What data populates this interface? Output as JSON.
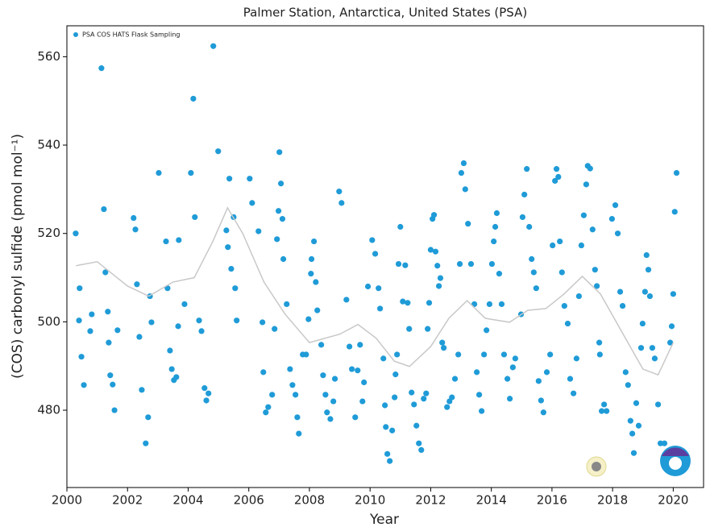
{
  "chart_data": {
    "type": "scatter",
    "title": "Palmer Station, Antarctica, United States (PSA)",
    "x_label": "Year",
    "y_label": "(COS) carbonyl sulfide (pmol mol⁻¹)",
    "xlim": [
      2000,
      2021
    ],
    "ylim": [
      462.5,
      567
    ],
    "xticks": [
      2000,
      2002,
      2004,
      2006,
      2008,
      2010,
      2012,
      2014,
      2016,
      2018,
      2020
    ],
    "yticks": [
      480,
      500,
      520,
      540,
      560
    ],
    "legend": "upper left",
    "series": [
      {
        "name": "PSA COS HATS Flask Sampling",
        "color": "#1f9bd7",
        "type": "scatter",
        "x": [
          2000.29,
          2000.42,
          2000.4,
          2000.48,
          2000.56,
          2000.77,
          2000.82,
          2001.14,
          2001.22,
          2001.27,
          2001.35,
          2001.38,
          2001.43,
          2001.51,
          2001.57,
          2001.67,
          2002.2,
          2002.26,
          2002.31,
          2002.39,
          2002.47,
          2002.6,
          2002.68,
          2002.79,
          2002.74,
          2003.03,
          2003.27,
          2003.32,
          2003.4,
          2003.46,
          2003.53,
          2003.61,
          2003.67,
          2003.69,
          2003.88,
          2004.09,
          2004.17,
          2004.22,
          2004.36,
          2004.44,
          2004.54,
          2004.6,
          2004.67,
          2004.83,
          2004.99,
          2005.26,
          2005.31,
          2005.36,
          2005.42,
          2005.5,
          2005.55,
          2005.6,
          2006.03,
          2006.11,
          2006.32,
          2006.45,
          2006.48,
          2006.56,
          2006.64,
          2006.77,
          2006.85,
          2006.93,
          2006.98,
          2007.01,
          2007.06,
          2007.11,
          2007.14,
          2007.25,
          2007.36,
          2007.44,
          2007.54,
          2007.6,
          2007.65,
          2007.78,
          2007.89,
          2007.97,
          2008.05,
          2008.07,
          2008.15,
          2008.21,
          2008.26,
          2008.39,
          2008.45,
          2008.53,
          2008.58,
          2008.69,
          2008.79,
          2008.84,
          2008.98,
          2009.06,
          2009.22,
          2009.32,
          2009.4,
          2009.51,
          2009.59,
          2009.67,
          2009.75,
          2009.8,
          2009.93,
          2010.07,
          2010.17,
          2010.28,
          2010.33,
          2010.44,
          2010.49,
          2010.52,
          2010.57,
          2010.65,
          2010.73,
          2010.81,
          2010.84,
          2010.89,
          2010.94,
          2011.0,
          2011.08,
          2011.16,
          2011.24,
          2011.29,
          2011.37,
          2011.45,
          2011.53,
          2011.61,
          2011.69,
          2011.77,
          2011.85,
          2011.9,
          2011.95,
          2012.0,
          2012.06,
          2012.11,
          2012.16,
          2012.22,
          2012.27,
          2012.32,
          2012.38,
          2012.43,
          2012.54,
          2012.62,
          2012.7,
          2012.8,
          2012.91,
          2012.96,
          2013.01,
          2013.09,
          2013.14,
          2013.23,
          2013.33,
          2013.44,
          2013.52,
          2013.6,
          2013.68,
          2013.76,
          2013.84,
          2013.94,
          2014.02,
          2014.08,
          2014.13,
          2014.18,
          2014.26,
          2014.34,
          2014.42,
          2014.53,
          2014.61,
          2014.71,
          2014.79,
          2014.98,
          2015.03,
          2015.09,
          2015.17,
          2015.25,
          2015.33,
          2015.4,
          2015.48,
          2015.56,
          2015.64,
          2015.72,
          2015.83,
          2015.94,
          2016.02,
          2016.1,
          2016.15,
          2016.21,
          2016.26,
          2016.33,
          2016.41,
          2016.52,
          2016.6,
          2016.71,
          2016.81,
          2016.89,
          2016.97,
          2017.05,
          2017.13,
          2017.18,
          2017.26,
          2017.34,
          2017.42,
          2017.48,
          2017.56,
          2017.58,
          2017.64,
          2017.72,
          2017.8,
          2017.98,
          2018.09,
          2018.17,
          2018.25,
          2018.33,
          2018.43,
          2018.51,
          2018.59,
          2018.65,
          2018.7,
          2018.78,
          2018.86,
          2018.94,
          2018.99,
          2019.07,
          2019.12,
          2019.18,
          2019.23,
          2019.31,
          2019.39,
          2019.5,
          2019.58,
          2019.71,
          2019.9,
          2019.95,
          2020.0,
          2020.05,
          2020.11
        ],
        "values": [
          520.0,
          507.6,
          500.3,
          492.1,
          485.7,
          497.9,
          501.7,
          557.4,
          525.5,
          511.2,
          502.3,
          495.3,
          487.9,
          485.8,
          480.0,
          498.1,
          523.5,
          520.9,
          508.5,
          496.6,
          484.6,
          472.5,
          478.4,
          499.9,
          505.8,
          533.7,
          518.2,
          507.6,
          493.5,
          489.3,
          486.8,
          487.5,
          499.0,
          518.5,
          504.0,
          533.7,
          550.5,
          523.7,
          500.3,
          497.9,
          485.0,
          482.2,
          483.8,
          562.4,
          538.6,
          520.7,
          516.9,
          532.4,
          512.0,
          523.7,
          507.6,
          500.3,
          532.4,
          526.9,
          520.5,
          499.9,
          488.6,
          479.5,
          480.7,
          483.5,
          498.4,
          518.7,
          525.1,
          538.4,
          531.3,
          523.3,
          514.2,
          504.0,
          489.3,
          485.7,
          483.5,
          478.4,
          474.7,
          492.6,
          492.6,
          500.6,
          510.9,
          514.2,
          518.2,
          509.0,
          502.6,
          494.8,
          487.9,
          483.5,
          479.5,
          478.0,
          482.0,
          487.1,
          529.5,
          526.9,
          505.0,
          494.4,
          489.3,
          478.4,
          489.0,
          494.8,
          482.0,
          486.3,
          508.0,
          518.5,
          515.4,
          507.6,
          503.0,
          491.7,
          481.1,
          476.2,
          470.1,
          468.5,
          475.4,
          482.9,
          488.1,
          492.6,
          513.1,
          521.5,
          504.6,
          512.8,
          504.3,
          498.4,
          484.0,
          481.3,
          476.5,
          472.5,
          471.0,
          482.6,
          483.8,
          498.4,
          504.3,
          516.3,
          523.3,
          524.2,
          515.9,
          512.7,
          508.1,
          509.9,
          495.3,
          494.1,
          480.7,
          482.0,
          482.9,
          487.1,
          492.6,
          513.1,
          533.7,
          535.9,
          530.0,
          522.2,
          513.1,
          504.0,
          488.6,
          483.5,
          479.8,
          492.6,
          498.1,
          504.0,
          513.1,
          518.2,
          521.5,
          524.6,
          510.9,
          504.0,
          492.6,
          487.1,
          482.6,
          489.7,
          491.7,
          501.7,
          523.7,
          528.8,
          534.6,
          521.5,
          514.2,
          511.2,
          507.6,
          486.6,
          482.2,
          479.5,
          488.6,
          492.6,
          517.3,
          531.9,
          534.6,
          532.8,
          518.2,
          511.2,
          503.6,
          499.6,
          487.1,
          483.8,
          491.7,
          505.8,
          517.3,
          524.1,
          531.1,
          535.3,
          534.7,
          520.9,
          511.8,
          508.1,
          495.3,
          492.6,
          479.8,
          481.3,
          479.8,
          523.3,
          526.4,
          520.0,
          506.8,
          503.6,
          488.6,
          485.7,
          477.6,
          474.7,
          470.3,
          481.6,
          476.5,
          494.1,
          499.6,
          506.8,
          515.1,
          511.8,
          505.8,
          494.1,
          491.7,
          481.3,
          472.5,
          472.5,
          495.3,
          499.0,
          506.3,
          524.9,
          533.7
        ]
      },
      {
        "color": "#c8c8c8",
        "type": "line",
        "x": [
          2000.3,
          2001,
          2002,
          2002.7,
          2003.5,
          2004.2,
          2004.8,
          2005.3,
          2005.8,
          2006.5,
          2007.2,
          2008,
          2009,
          2009.6,
          2010.2,
          2010.8,
          2011.3,
          2012,
          2012.6,
          2013.2,
          2013.8,
          2014.6,
          2015.2,
          2015.8,
          2016.4,
          2017,
          2017.6,
          2018.2,
          2019,
          2019.5,
          2020
        ],
        "values": [
          512.7,
          513.6,
          508.1,
          505.8,
          509,
          510,
          518,
          525.8,
          520,
          509,
          501.7,
          495.3,
          497.2,
          499.4,
          496.3,
          491.1,
          489.9,
          494.4,
          500.8,
          504.8,
          500.8,
          499.9,
          502.6,
          503,
          506.3,
          510.3,
          506.3,
          499,
          489.3,
          488,
          495.3
        ]
      }
    ]
  }
}
